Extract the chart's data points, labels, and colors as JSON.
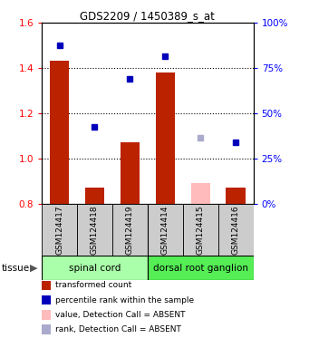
{
  "title": "GDS2209 / 1450389_s_at",
  "samples": [
    "GSM124417",
    "GSM124418",
    "GSM124419",
    "GSM124414",
    "GSM124415",
    "GSM124416"
  ],
  "bar_values": [
    1.43,
    0.87,
    1.07,
    1.38,
    null,
    0.87
  ],
  "bar_absent_values": [
    null,
    null,
    null,
    null,
    0.89,
    null
  ],
  "dot_values": [
    1.5,
    1.14,
    1.35,
    1.45,
    null,
    1.07
  ],
  "dot_absent_values": [
    null,
    null,
    null,
    null,
    1.09,
    null
  ],
  "bar_color": "#bb2200",
  "bar_absent_color": "#ffbbbb",
  "dot_color": "#0000bb",
  "dot_absent_color": "#aaaacc",
  "ylim": [
    0.8,
    1.6
  ],
  "yticks": [
    0.8,
    1.0,
    1.2,
    1.4,
    1.6
  ],
  "y2ticks_vals": [
    0,
    25,
    50,
    75,
    100
  ],
  "y2labels": [
    "0%",
    "25%",
    "50%",
    "75%",
    "100%"
  ],
  "tissue_groups": [
    {
      "label": "spinal cord",
      "span": [
        0,
        3
      ],
      "color": "#aaffaa"
    },
    {
      "label": "dorsal root ganglion",
      "span": [
        3,
        6
      ],
      "color": "#55ee55"
    }
  ],
  "tissue_label": "tissue",
  "legend_items": [
    {
      "color": "#bb2200",
      "label": "transformed count"
    },
    {
      "color": "#0000bb",
      "label": "percentile rank within the sample"
    },
    {
      "color": "#ffbbbb",
      "label": "value, Detection Call = ABSENT"
    },
    {
      "color": "#aaaacc",
      "label": "rank, Detection Call = ABSENT"
    }
  ]
}
